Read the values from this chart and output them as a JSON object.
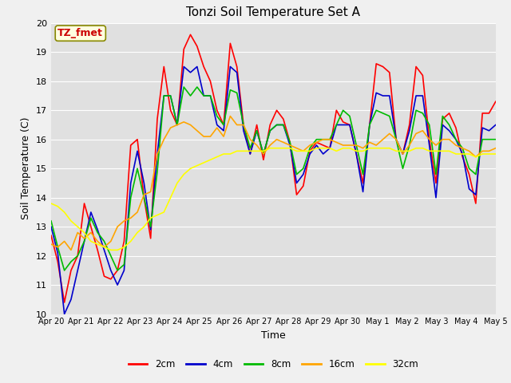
{
  "title": "Tonzi Soil Temperature Set A",
  "xlabel": "Time",
  "ylabel": "Soil Temperature (C)",
  "annotation": "TZ_fmet",
  "ylim": [
    10.0,
    20.0
  ],
  "yticks": [
    10.0,
    11.0,
    12.0,
    13.0,
    14.0,
    15.0,
    16.0,
    17.0,
    18.0,
    19.0,
    20.0
  ],
  "xtick_labels": [
    "Apr 20",
    "Apr 21",
    "Apr 22",
    "Apr 23",
    "Apr 24",
    "Apr 25",
    "Apr 26",
    "Apr 27",
    "Apr 28",
    "Apr 29",
    "Apr 30",
    "May 1",
    "May 2",
    "May 3",
    "May 4",
    "May 5"
  ],
  "colors": {
    "2cm": "#FF0000",
    "4cm": "#0000CC",
    "8cm": "#00BB00",
    "16cm": "#FFA500",
    "32cm": "#FFFF00"
  },
  "legend_labels": [
    "2cm",
    "4cm",
    "8cm",
    "16cm",
    "32cm"
  ],
  "fig_bg_color": "#F0F0F0",
  "plot_bg_color": "#E0E0E0",
  "title_fontsize": 11,
  "series_2cm": [
    12.7,
    11.8,
    10.4,
    11.5,
    12.0,
    13.8,
    13.0,
    12.2,
    11.3,
    11.2,
    11.5,
    12.5,
    15.8,
    16.0,
    14.0,
    12.6,
    16.7,
    18.5,
    17.0,
    16.5,
    19.1,
    19.6,
    19.2,
    18.5,
    18.0,
    17.0,
    16.5,
    19.3,
    18.5,
    16.5,
    15.5,
    16.5,
    15.3,
    16.5,
    17.0,
    16.7,
    15.9,
    14.1,
    14.4,
    15.6,
    15.9,
    15.8,
    15.7,
    17.0,
    16.6,
    16.5,
    15.5,
    14.5,
    16.5,
    18.6,
    18.5,
    18.3,
    16.0,
    15.5,
    16.5,
    18.5,
    18.2,
    16.0,
    14.5,
    16.7,
    16.9,
    16.4,
    15.4,
    14.8,
    13.8,
    16.9,
    16.9,
    17.3
  ],
  "series_4cm": [
    13.0,
    12.1,
    10.0,
    10.5,
    11.5,
    12.5,
    13.5,
    12.9,
    12.2,
    11.5,
    11.0,
    11.5,
    14.5,
    15.6,
    14.5,
    12.9,
    15.5,
    17.5,
    17.5,
    16.5,
    18.5,
    18.3,
    18.5,
    17.5,
    17.5,
    16.5,
    16.3,
    18.5,
    18.3,
    16.3,
    15.5,
    16.3,
    15.5,
    16.3,
    16.5,
    16.5,
    15.8,
    14.5,
    14.8,
    15.5,
    15.8,
    15.5,
    15.7,
    16.5,
    16.5,
    16.5,
    15.5,
    14.2,
    16.5,
    17.6,
    17.5,
    17.5,
    16.0,
    15.5,
    16.3,
    17.5,
    17.5,
    15.8,
    14.0,
    16.5,
    16.3,
    16.0,
    15.5,
    14.3,
    14.1,
    16.4,
    16.3,
    16.5
  ],
  "series_8cm": [
    13.2,
    12.3,
    11.5,
    11.8,
    12.0,
    12.5,
    13.3,
    12.8,
    12.5,
    12.0,
    11.5,
    11.7,
    14.0,
    15.0,
    14.0,
    13.0,
    14.9,
    17.5,
    17.5,
    16.5,
    17.8,
    17.5,
    17.8,
    17.5,
    17.5,
    16.8,
    16.5,
    17.7,
    17.6,
    16.5,
    15.7,
    16.3,
    15.5,
    16.3,
    16.5,
    16.5,
    15.9,
    14.8,
    15.0,
    15.7,
    16.0,
    16.0,
    16.0,
    16.5,
    17.0,
    16.8,
    15.8,
    14.8,
    16.5,
    17.0,
    16.9,
    16.8,
    16.0,
    15.0,
    15.8,
    17.0,
    16.9,
    16.5,
    14.8,
    16.8,
    16.5,
    16.0,
    15.7,
    15.0,
    14.8,
    16.0,
    16.0,
    16.0
  ],
  "series_16cm": [
    12.4,
    12.3,
    12.5,
    12.2,
    12.8,
    12.6,
    12.8,
    12.5,
    12.3,
    12.5,
    13.0,
    13.2,
    13.3,
    13.5,
    14.1,
    14.2,
    15.5,
    16.0,
    16.4,
    16.5,
    16.6,
    16.5,
    16.3,
    16.1,
    16.1,
    16.4,
    16.1,
    16.8,
    16.5,
    16.5,
    16.0,
    15.8,
    15.5,
    15.8,
    16.0,
    15.9,
    15.8,
    15.7,
    15.6,
    15.8,
    15.9,
    16.0,
    16.0,
    15.9,
    15.8,
    15.8,
    15.8,
    15.7,
    15.9,
    15.8,
    16.0,
    16.2,
    16.0,
    15.5,
    15.8,
    16.2,
    16.3,
    16.0,
    15.8,
    16.0,
    16.0,
    15.8,
    15.7,
    15.6,
    15.4,
    15.6,
    15.6,
    15.7
  ],
  "series_32cm": [
    13.8,
    13.7,
    13.5,
    13.2,
    13.0,
    12.8,
    12.5,
    12.4,
    12.3,
    12.2,
    12.2,
    12.3,
    12.5,
    12.8,
    13.0,
    13.3,
    13.4,
    13.5,
    14.0,
    14.5,
    14.8,
    15.0,
    15.1,
    15.2,
    15.3,
    15.4,
    15.5,
    15.5,
    15.6,
    15.6,
    15.6,
    15.6,
    15.6,
    15.7,
    15.7,
    15.7,
    15.7,
    15.6,
    15.6,
    15.6,
    15.7,
    15.7,
    15.7,
    15.6,
    15.7,
    15.7,
    15.6,
    15.6,
    15.7,
    15.7,
    15.7,
    15.7,
    15.6,
    15.6,
    15.6,
    15.7,
    15.7,
    15.6,
    15.6,
    15.6,
    15.6,
    15.5,
    15.5,
    15.5,
    15.4,
    15.5,
    15.5,
    15.5
  ]
}
